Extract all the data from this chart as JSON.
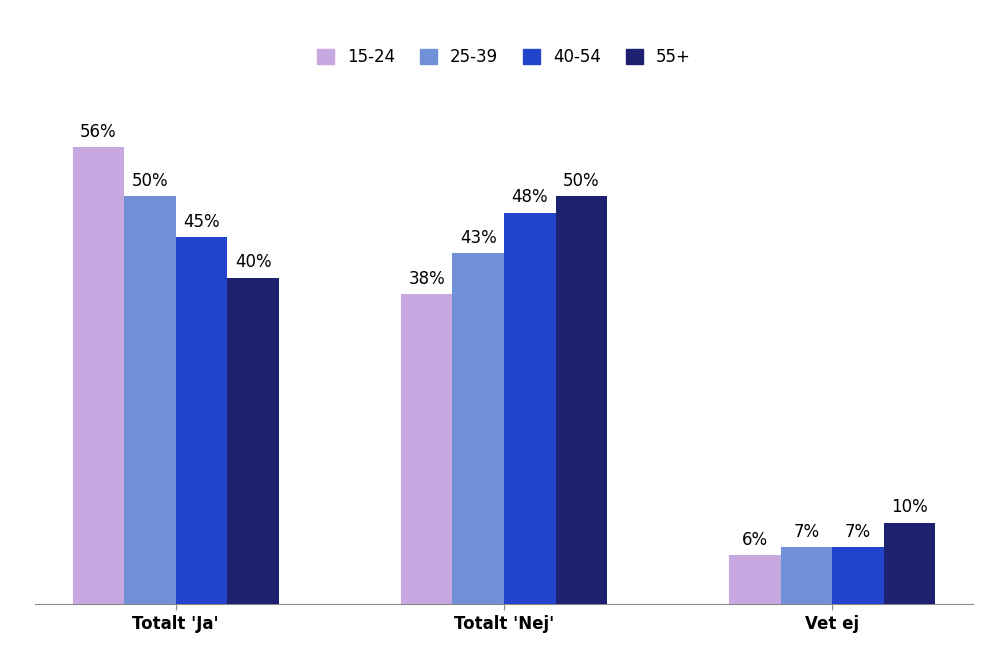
{
  "categories": [
    "Totalt 'Ja'",
    "Totalt 'Nej'",
    "Vet ej"
  ],
  "series": [
    {
      "label": "15-24",
      "values": [
        56,
        38,
        6
      ],
      "color": "#c8a8e0"
    },
    {
      "label": "25-39",
      "values": [
        50,
        43,
        7
      ],
      "color": "#7090d8"
    },
    {
      "label": "40-54",
      "values": [
        45,
        48,
        7
      ],
      "color": "#2244cc"
    },
    {
      "label": "55+",
      "values": [
        40,
        50,
        10
      ],
      "color": "#1e2070"
    }
  ],
  "ylim": [
    0,
    65
  ],
  "bar_width": 0.22,
  "label_fontsize": 12,
  "legend_fontsize": 12,
  "tick_fontsize": 12,
  "background_color": "#ffffff"
}
